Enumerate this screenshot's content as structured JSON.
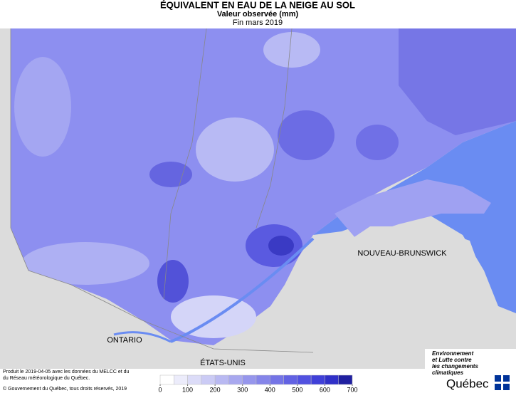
{
  "header": {
    "title": "ÉQUIVALENT EN EAU DE LA NEIGE AU SOL",
    "subtitle": "Valeur observée (mm)",
    "period": "Fin mars 2019"
  },
  "map_labels": [
    "NOUVEAU-BRUNSWICK",
    "ONTARIO",
    "ÉTATS-UNIS"
  ],
  "legend": {
    "levels": [
      0,
      50,
      100,
      150,
      200,
      250,
      300,
      350,
      400,
      450,
      500,
      550,
      600,
      650,
      700
    ],
    "colors": [
      "#ffffff",
      "#ececfb",
      "#dcdcf8",
      "#cbcbf5",
      "#b9b9f2",
      "#a8a8ef",
      "#9696ec",
      "#8585e9",
      "#7474e6",
      "#6262e3",
      "#5151e0",
      "#4040d8",
      "#3030c8",
      "#2020a0"
    ],
    "ticks": [
      0,
      100,
      200,
      300,
      400,
      500,
      600,
      700
    ]
  },
  "credits": {
    "produced": [
      "Produit le 2019-04-05 avec les données du MELCC et du",
      "du Réseau météorologique du Québec."
    ],
    "copyright": "© Gouvernement du Québec, tous droits réservés, 2019"
  },
  "logo": {
    "lines": [
      "Environnement",
      "et Lutte contre",
      "les changements",
      "climatiques"
    ],
    "name": "Québec"
  }
}
